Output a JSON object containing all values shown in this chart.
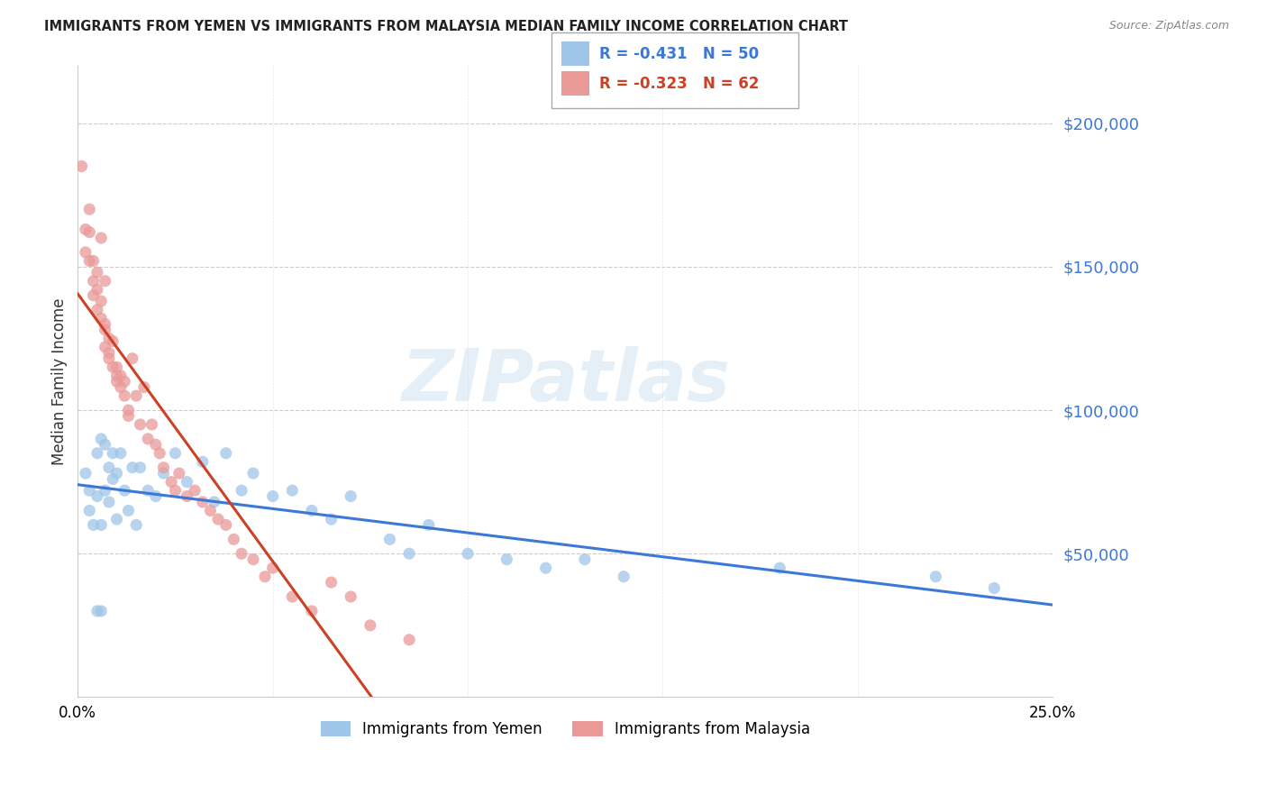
{
  "title": "IMMIGRANTS FROM YEMEN VS IMMIGRANTS FROM MALAYSIA MEDIAN FAMILY INCOME CORRELATION CHART",
  "source": "Source: ZipAtlas.com",
  "ylabel": "Median Family Income",
  "ytick_values": [
    50000,
    100000,
    150000,
    200000
  ],
  "ymin": 0,
  "ymax": 220000,
  "xmin": 0.0,
  "xmax": 0.25,
  "color_yemen": "#9fc5e8",
  "color_malaysia": "#ea9999",
  "trendline_color_yemen": "#3c78d8",
  "trendline_color_malaysia": "#cc4125",
  "scatter_alpha": 0.75,
  "scatter_size": 90,
  "yemen_x": [
    0.002,
    0.003,
    0.003,
    0.004,
    0.005,
    0.005,
    0.006,
    0.006,
    0.007,
    0.007,
    0.008,
    0.008,
    0.009,
    0.009,
    0.01,
    0.01,
    0.011,
    0.012,
    0.013,
    0.014,
    0.015,
    0.016,
    0.018,
    0.02,
    0.022,
    0.025,
    0.028,
    0.032,
    0.035,
    0.038,
    0.042,
    0.045,
    0.05,
    0.055,
    0.06,
    0.065,
    0.07,
    0.08,
    0.085,
    0.09,
    0.1,
    0.11,
    0.12,
    0.13,
    0.14,
    0.18,
    0.22,
    0.235,
    0.005,
    0.006
  ],
  "yemen_y": [
    78000,
    72000,
    65000,
    60000,
    85000,
    70000,
    90000,
    60000,
    88000,
    72000,
    80000,
    68000,
    85000,
    76000,
    78000,
    62000,
    85000,
    72000,
    65000,
    80000,
    60000,
    80000,
    72000,
    70000,
    78000,
    85000,
    75000,
    82000,
    68000,
    85000,
    72000,
    78000,
    70000,
    72000,
    65000,
    62000,
    70000,
    55000,
    50000,
    60000,
    50000,
    48000,
    45000,
    48000,
    42000,
    45000,
    42000,
    38000,
    30000,
    30000
  ],
  "malaysia_x": [
    0.001,
    0.002,
    0.002,
    0.003,
    0.003,
    0.004,
    0.004,
    0.005,
    0.005,
    0.005,
    0.006,
    0.006,
    0.007,
    0.007,
    0.007,
    0.008,
    0.008,
    0.009,
    0.009,
    0.01,
    0.01,
    0.011,
    0.011,
    0.012,
    0.012,
    0.013,
    0.013,
    0.014,
    0.015,
    0.016,
    0.017,
    0.018,
    0.019,
    0.02,
    0.021,
    0.022,
    0.024,
    0.025,
    0.026,
    0.028,
    0.03,
    0.032,
    0.034,
    0.036,
    0.038,
    0.04,
    0.042,
    0.045,
    0.048,
    0.05,
    0.055,
    0.06,
    0.065,
    0.07,
    0.075,
    0.085,
    0.003,
    0.004,
    0.006,
    0.007,
    0.008,
    0.01
  ],
  "malaysia_y": [
    185000,
    163000,
    155000,
    162000,
    152000,
    152000,
    145000,
    148000,
    142000,
    135000,
    138000,
    132000,
    130000,
    128000,
    122000,
    120000,
    118000,
    124000,
    115000,
    115000,
    112000,
    112000,
    108000,
    105000,
    110000,
    100000,
    98000,
    118000,
    105000,
    95000,
    108000,
    90000,
    95000,
    88000,
    85000,
    80000,
    75000,
    72000,
    78000,
    70000,
    72000,
    68000,
    65000,
    62000,
    60000,
    55000,
    50000,
    48000,
    42000,
    45000,
    35000,
    30000,
    40000,
    35000,
    25000,
    20000,
    170000,
    140000,
    160000,
    145000,
    125000,
    110000
  ]
}
